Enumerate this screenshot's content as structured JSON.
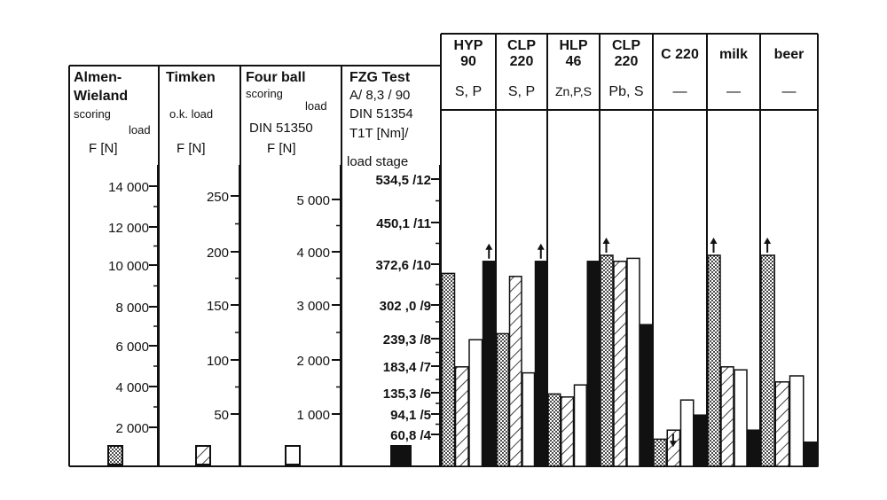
{
  "chart_data": {
    "type": "bar",
    "colors": {
      "ink": "#111111",
      "paper": "#ffffff"
    },
    "scales": [
      {
        "name": "almen",
        "header": [
          "Almen-",
          "Wieland"
        ],
        "sub": "scoring",
        "sub_suffix": "load",
        "unit": "F [N]",
        "ticks": [
          "14 000",
          "12 000",
          "10 000",
          "8 000",
          "6 000",
          "4 000",
          "2 000"
        ],
        "legend_pattern": "dots"
      },
      {
        "name": "timken",
        "header": [
          "Timken"
        ],
        "sub": "o.k. load",
        "unit": "F  [N]",
        "ticks": [
          "250",
          "200",
          "150",
          "100",
          "50"
        ],
        "legend_pattern": "hatch"
      },
      {
        "name": "fourball",
        "header": [
          "Four ball"
        ],
        "sub": "scoring",
        "sub_suffix": "load",
        "unit2": "DIN  51350",
        "unit": "F  [N]",
        "ticks": [
          "5 000",
          "4 000",
          "3 000",
          "2 000",
          "1 000"
        ],
        "legend_pattern": "white"
      },
      {
        "name": "fzg",
        "header": [
          "FZG  Test",
          "A/ 8,3 / 90",
          "DIN 51354",
          "T1T [Nm]/",
          "load stage"
        ],
        "ticks": [
          "534,5 /12",
          "450,1 /11",
          "372,6 /10",
          "302 ,0 /9",
          "239,3 /8",
          "183,4 /7",
          "135,3 /6",
          "94,1 /5",
          "60,8 /4"
        ],
        "legend_pattern": "black"
      }
    ],
    "groups": [
      {
        "name": [
          "HYP",
          "90"
        ],
        "additives": "S, P",
        "values": [
          0.64,
          0.33,
          0.42,
          0.68
        ],
        "arrows": [
          "",
          "",
          "",
          "up"
        ]
      },
      {
        "name": [
          "CLP",
          "220"
        ],
        "additives": "S, P",
        "values": [
          0.44,
          0.63,
          0.31,
          0.68
        ],
        "arrows": [
          "",
          "",
          "",
          "up"
        ]
      },
      {
        "name": [
          "HLP",
          "46"
        ],
        "additives": "Zn,P,S",
        "values": [
          0.24,
          0.23,
          0.27,
          0.68
        ],
        "arrows": [
          "",
          "",
          "",
          ""
        ]
      },
      {
        "name": [
          "CLP",
          "220"
        ],
        "additives": "Pb, S",
        "values": [
          0.7,
          0.68,
          0.69,
          0.47
        ],
        "arrows": [
          "up",
          "",
          "",
          ""
        ]
      },
      {
        "name": [
          "C 220"
        ],
        "additives": "—",
        "values": [
          0.09,
          0.12,
          0.22,
          0.17
        ],
        "arrows": [
          "",
          "down",
          "",
          ""
        ]
      },
      {
        "name": [
          "milk"
        ],
        "additives": "—",
        "values": [
          0.7,
          0.33,
          0.32,
          0.12
        ],
        "arrows": [
          "up",
          "",
          "",
          ""
        ]
      },
      {
        "name": [
          "beer"
        ],
        "additives": "—",
        "values": [
          0.7,
          0.28,
          0.3,
          0.08
        ],
        "arrows": [
          "up",
          "",
          "",
          ""
        ]
      }
    ]
  }
}
